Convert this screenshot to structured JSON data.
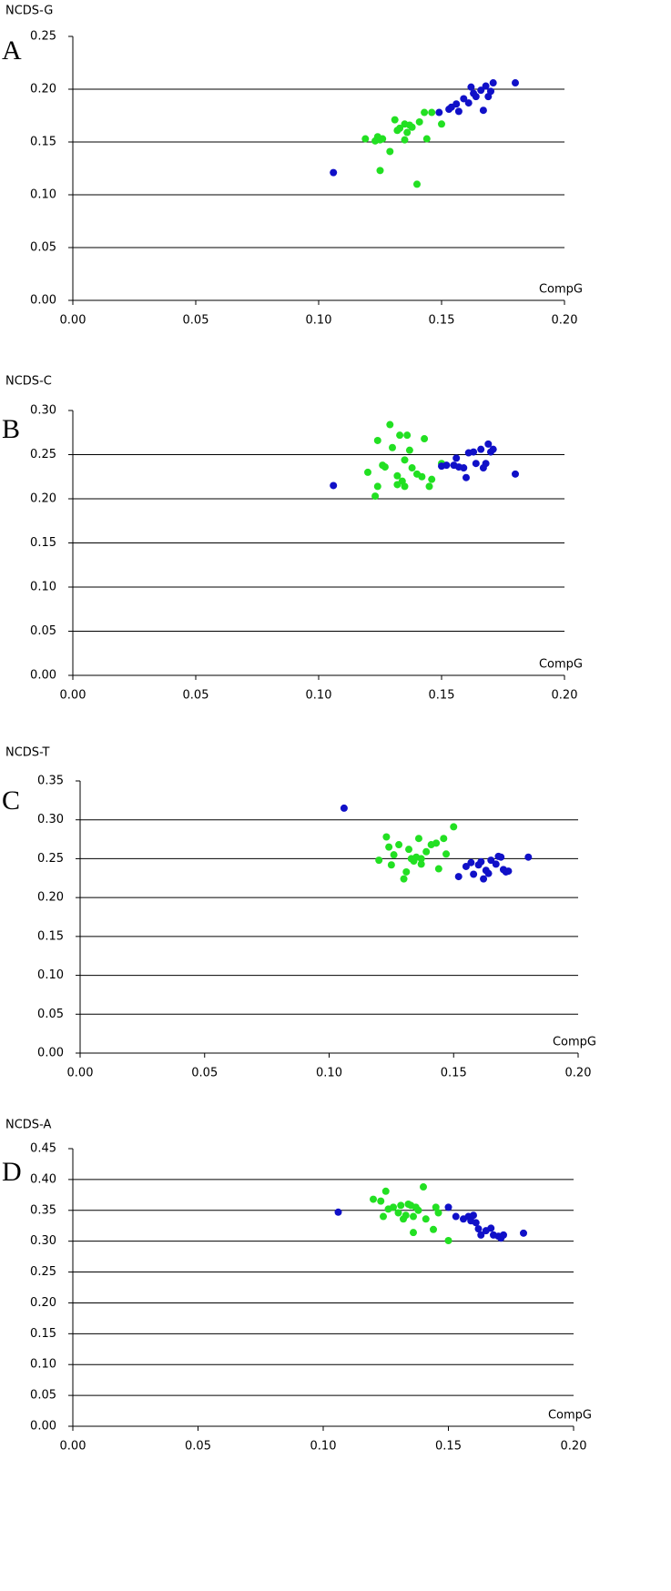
{
  "chart_data": [
    {
      "type": "scatter",
      "panel": "A",
      "y_label": "NCDS-G",
      "x_label": "CompG",
      "xlim": [
        0,
        0.2
      ],
      "xticks": [
        {
          "value": 0,
          "label": "0.00"
        },
        {
          "value": 0.05,
          "label": "0.05"
        },
        {
          "value": 0.1,
          "label": "0.10"
        },
        {
          "value": 0.15,
          "label": "0.15"
        },
        {
          "value": 0.2,
          "label": "0.20"
        }
      ],
      "ylim": [
        0,
        0.25
      ],
      "yticks": [
        {
          "value": 0,
          "label": "0.00"
        },
        {
          "value": 0.05,
          "label": "0.05"
        },
        {
          "value": 0.1,
          "label": "0.10"
        },
        {
          "value": 0.15,
          "label": "0.15"
        },
        {
          "value": 0.2,
          "label": "0.20"
        },
        {
          "value": 0.25,
          "label": "0.25"
        }
      ],
      "grid": true,
      "series": [
        {
          "color": "#22e022",
          "x": [
            0.119,
            0.123,
            0.124,
            0.125,
            0.126,
            0.125,
            0.129,
            0.131,
            0.132,
            0.133,
            0.135,
            0.135,
            0.137,
            0.138,
            0.136,
            0.14,
            0.141,
            0.143,
            0.144,
            0.146,
            0.15
          ],
          "values": [
            0.153,
            0.151,
            0.155,
            0.152,
            0.153,
            0.123,
            0.141,
            0.171,
            0.161,
            0.163,
            0.152,
            0.167,
            0.166,
            0.164,
            0.159,
            0.11,
            0.169,
            0.178,
            0.153,
            0.178,
            0.167
          ]
        },
        {
          "color": "#1010c8",
          "x": [
            0.106,
            0.149,
            0.153,
            0.154,
            0.156,
            0.157,
            0.159,
            0.161,
            0.162,
            0.163,
            0.164,
            0.166,
            0.167,
            0.168,
            0.169,
            0.17,
            0.171,
            0.18
          ],
          "values": [
            0.121,
            0.178,
            0.181,
            0.183,
            0.186,
            0.179,
            0.191,
            0.187,
            0.202,
            0.196,
            0.193,
            0.199,
            0.18,
            0.203,
            0.193,
            0.198,
            0.206,
            0.206
          ]
        }
      ]
    },
    {
      "type": "scatter",
      "panel": "B",
      "y_label": "NCDS-C",
      "x_label": "CompG",
      "xlim": [
        0,
        0.2
      ],
      "xticks": [
        {
          "value": 0,
          "label": "0.00"
        },
        {
          "value": 0.05,
          "label": "0.05"
        },
        {
          "value": 0.1,
          "label": "0.10"
        },
        {
          "value": 0.15,
          "label": "0.15"
        },
        {
          "value": 0.2,
          "label": "0.20"
        }
      ],
      "ylim": [
        0,
        0.3
      ],
      "yticks": [
        {
          "value": 0,
          "label": "0.00"
        },
        {
          "value": 0.05,
          "label": "0.05"
        },
        {
          "value": 0.1,
          "label": "0.10"
        },
        {
          "value": 0.15,
          "label": "0.15"
        },
        {
          "value": 0.2,
          "label": "0.20"
        },
        {
          "value": 0.25,
          "label": "0.25"
        },
        {
          "value": 0.3,
          "label": "0.30"
        }
      ],
      "grid": true,
      "series": [
        {
          "color": "#22e022",
          "x": [
            0.12,
            0.123,
            0.124,
            0.124,
            0.126,
            0.127,
            0.129,
            0.13,
            0.132,
            0.132,
            0.133,
            0.134,
            0.135,
            0.135,
            0.136,
            0.137,
            0.138,
            0.14,
            0.142,
            0.143,
            0.145,
            0.146,
            0.15
          ],
          "values": [
            0.23,
            0.203,
            0.214,
            0.266,
            0.238,
            0.236,
            0.284,
            0.258,
            0.216,
            0.226,
            0.272,
            0.22,
            0.244,
            0.214,
            0.272,
            0.255,
            0.235,
            0.228,
            0.225,
            0.268,
            0.214,
            0.222,
            0.24
          ]
        },
        {
          "color": "#1010c8",
          "x": [
            0.106,
            0.15,
            0.152,
            0.155,
            0.156,
            0.157,
            0.159,
            0.16,
            0.161,
            0.163,
            0.164,
            0.166,
            0.167,
            0.168,
            0.169,
            0.17,
            0.171,
            0.18
          ],
          "values": [
            0.215,
            0.237,
            0.238,
            0.238,
            0.246,
            0.236,
            0.235,
            0.224,
            0.252,
            0.253,
            0.24,
            0.256,
            0.235,
            0.24,
            0.262,
            0.253,
            0.256,
            0.228
          ]
        }
      ]
    },
    {
      "type": "scatter",
      "panel": "C",
      "y_label": "NCDS-T",
      "x_label": "CompG",
      "xlim": [
        0,
        0.2
      ],
      "xticks": [
        {
          "value": 0,
          "label": "0.00"
        },
        {
          "value": 0.05,
          "label": "0.05"
        },
        {
          "value": 0.1,
          "label": "0.10"
        },
        {
          "value": 0.15,
          "label": "0.15"
        },
        {
          "value": 0.2,
          "label": "0.20"
        }
      ],
      "ylim": [
        0,
        0.35
      ],
      "yticks": [
        {
          "value": 0,
          "label": "0.00"
        },
        {
          "value": 0.05,
          "label": "0.05"
        },
        {
          "value": 0.1,
          "label": "0.10"
        },
        {
          "value": 0.15,
          "label": "0.15"
        },
        {
          "value": 0.2,
          "label": "0.20"
        },
        {
          "value": 0.25,
          "label": "0.25"
        },
        {
          "value": 0.3,
          "label": "0.30"
        },
        {
          "value": 0.35,
          "label": "0.35"
        }
      ],
      "grid": true,
      "series": [
        {
          "color": "#22e022",
          "x": [
            0.12,
            0.123,
            0.124,
            0.125,
            0.126,
            0.128,
            0.13,
            0.131,
            0.132,
            0.133,
            0.134,
            0.135,
            0.136,
            0.137,
            0.137,
            0.139,
            0.141,
            0.143,
            0.144,
            0.146,
            0.147,
            0.15
          ],
          "values": [
            0.248,
            0.278,
            0.265,
            0.242,
            0.255,
            0.268,
            0.224,
            0.233,
            0.262,
            0.25,
            0.247,
            0.252,
            0.276,
            0.25,
            0.243,
            0.259,
            0.268,
            0.27,
            0.237,
            0.276,
            0.256,
            0.291
          ]
        },
        {
          "color": "#1010c8",
          "x": [
            0.106,
            0.152,
            0.155,
            0.157,
            0.158,
            0.16,
            0.161,
            0.162,
            0.163,
            0.164,
            0.165,
            0.167,
            0.168,
            0.169,
            0.17,
            0.171,
            0.172,
            0.18
          ],
          "values": [
            0.315,
            0.227,
            0.24,
            0.245,
            0.23,
            0.242,
            0.246,
            0.224,
            0.235,
            0.231,
            0.248,
            0.243,
            0.253,
            0.252,
            0.236,
            0.233,
            0.234,
            0.252
          ]
        }
      ]
    },
    {
      "type": "scatter",
      "panel": "D",
      "y_label": "NCDS-A",
      "x_label": "CompG",
      "xlim": [
        0,
        0.2
      ],
      "xticks": [
        {
          "value": 0,
          "label": "0.00"
        },
        {
          "value": 0.05,
          "label": "0.05"
        },
        {
          "value": 0.1,
          "label": "0.10"
        },
        {
          "value": 0.15,
          "label": "0.15"
        },
        {
          "value": 0.2,
          "label": "0.20"
        }
      ],
      "ylim": [
        0,
        0.45
      ],
      "yticks": [
        {
          "value": 0,
          "label": "0.00"
        },
        {
          "value": 0.05,
          "label": "0.05"
        },
        {
          "value": 0.1,
          "label": "0.10"
        },
        {
          "value": 0.15,
          "label": "0.15"
        },
        {
          "value": 0.2,
          "label": "0.20"
        },
        {
          "value": 0.25,
          "label": "0.25"
        },
        {
          "value": 0.3,
          "label": "0.30"
        },
        {
          "value": 0.35,
          "label": "0.35"
        },
        {
          "value": 0.4,
          "label": "0.40"
        },
        {
          "value": 0.45,
          "label": "0.45"
        }
      ],
      "grid": true,
      "series": [
        {
          "color": "#22e022",
          "x": [
            0.12,
            0.123,
            0.124,
            0.125,
            0.126,
            0.128,
            0.13,
            0.131,
            0.132,
            0.133,
            0.134,
            0.135,
            0.136,
            0.136,
            0.137,
            0.138,
            0.14,
            0.141,
            0.144,
            0.145,
            0.146,
            0.15
          ],
          "values": [
            0.368,
            0.365,
            0.34,
            0.381,
            0.352,
            0.355,
            0.346,
            0.358,
            0.336,
            0.342,
            0.36,
            0.358,
            0.314,
            0.34,
            0.355,
            0.35,
            0.388,
            0.336,
            0.319,
            0.355,
            0.346,
            0.301
          ]
        },
        {
          "color": "#1010c8",
          "x": [
            0.106,
            0.15,
            0.153,
            0.156,
            0.158,
            0.159,
            0.16,
            0.161,
            0.162,
            0.163,
            0.165,
            0.167,
            0.168,
            0.17,
            0.171,
            0.172,
            0.18
          ],
          "values": [
            0.347,
            0.355,
            0.34,
            0.336,
            0.34,
            0.333,
            0.342,
            0.33,
            0.32,
            0.31,
            0.317,
            0.321,
            0.31,
            0.308,
            0.305,
            0.31,
            0.313
          ]
        }
      ]
    }
  ]
}
